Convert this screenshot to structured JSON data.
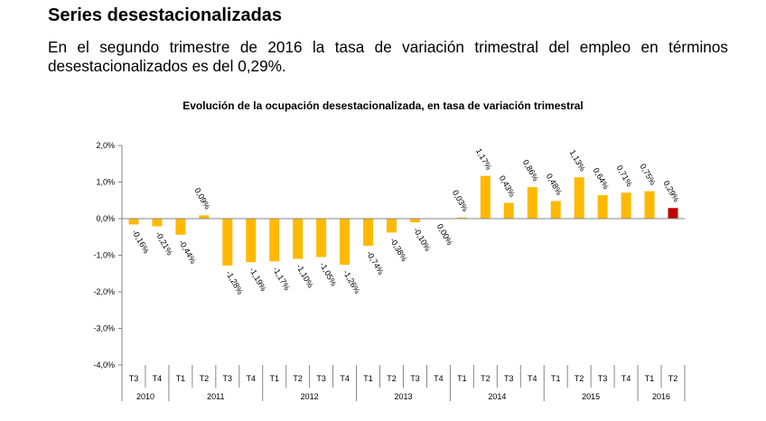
{
  "section": {
    "heading": "Series desestacionalizadas",
    "text": "En el segundo trimestre de 2016 la tasa de variación trimestral del empleo en términos desestacionalizados es del 0,29%."
  },
  "chart_data": {
    "type": "bar",
    "title": "Evolución de la ocupación desestacionalizada, en tasa de variación trimestral",
    "xlabel": "",
    "ylabel": "",
    "ylim": [
      -4.0,
      2.0
    ],
    "yticks": [
      "2,0%",
      "1,0%",
      "0,0%",
      "-1,0%",
      "-2,0%",
      "-3,0%",
      "-4,0%"
    ],
    "categories": [
      "T3",
      "T4",
      "T1",
      "T2",
      "T3",
      "T4",
      "T1",
      "T2",
      "T3",
      "T4",
      "T1",
      "T2",
      "T3",
      "T4",
      "T1",
      "T2",
      "T3",
      "T4",
      "T1",
      "T2",
      "T3",
      "T4",
      "T1",
      "T2"
    ],
    "years": [
      {
        "label": "2010",
        "count": 2
      },
      {
        "label": "2011",
        "count": 4
      },
      {
        "label": "2012",
        "count": 4
      },
      {
        "label": "2013",
        "count": 4
      },
      {
        "label": "2014",
        "count": 4
      },
      {
        "label": "2015",
        "count": 4
      },
      {
        "label": "2016",
        "count": 2
      }
    ],
    "values": [
      -0.16,
      -0.21,
      -0.44,
      0.09,
      -1.28,
      -1.19,
      -1.17,
      -1.1,
      -1.05,
      -1.26,
      -0.74,
      -0.38,
      -0.1,
      0.0,
      0.03,
      1.17,
      0.43,
      0.86,
      0.48,
      1.13,
      0.64,
      0.71,
      0.75,
      0.29
    ],
    "labels": [
      "-0,16%",
      "-0,21%",
      "-0,44%",
      "0,09%",
      "-1,28%",
      "-1,19%",
      "-1,17%",
      "-1,10%",
      "-1,05%",
      "-1,26%",
      "-0,74%",
      "-0,38%",
      "-0,10%",
      "0,00%",
      "0,03%",
      "1,17%",
      "0,43%",
      "0,86%",
      "0,48%",
      "1,13%",
      "0,64%",
      "0,71%",
      "0,75%",
      "0,29%"
    ],
    "highlight_index": 23,
    "colors": {
      "bar": "#FFB900",
      "highlight": "#C00000",
      "axis": "#868686",
      "text": "#000000"
    }
  }
}
